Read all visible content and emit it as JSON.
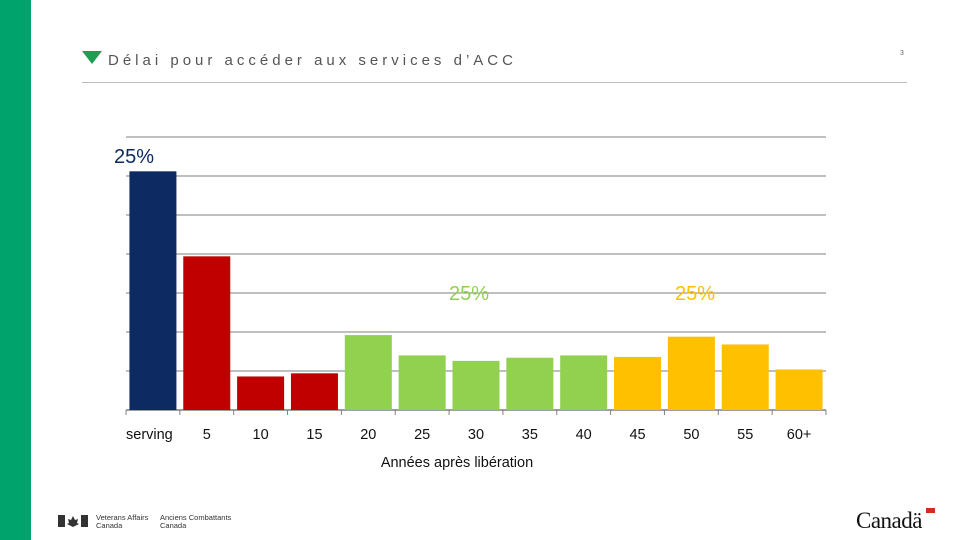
{
  "slide": {
    "title": "Délai pour accéder aux services d’ACC",
    "page_number": "3"
  },
  "colors": {
    "sidebar": "#00a36c",
    "title_triangle": "#1f9e53",
    "serving": "#0d2a63",
    "red": "#c00000",
    "green": "#92d050",
    "yellow": "#ffc000",
    "grid": "#7f7f7f"
  },
  "chart_data": {
    "type": "bar",
    "title": "Délai pour accéder aux services d’ACC",
    "xlabel": "Années après libération",
    "ylabel": "",
    "ylim": [
      0,
      35
    ],
    "grid": true,
    "categories": [
      "serving",
      "5",
      "10",
      "15",
      "20",
      "25",
      "30",
      "35",
      "40",
      "45",
      "50",
      "55",
      "60+"
    ],
    "values": [
      30.6,
      19.7,
      4.3,
      4.7,
      9.6,
      7.0,
      6.3,
      6.7,
      7.0,
      6.8,
      9.4,
      8.4,
      5.2
    ],
    "bar_colors": [
      "#0d2a63",
      "#c00000",
      "#c00000",
      "#c00000",
      "#92d050",
      "#92d050",
      "#92d050",
      "#92d050",
      "#92d050",
      "#ffc000",
      "#ffc000",
      "#ffc000",
      "#ffc000"
    ],
    "annotations": [
      {
        "text": "25%",
        "color": "#0d2a63",
        "anchor_category": "serving"
      },
      {
        "text": "25%",
        "color": "#92d050",
        "anchor_category": "30"
      },
      {
        "text": "25%",
        "color": "#ffc000",
        "anchor_category": "50"
      }
    ]
  },
  "footer": {
    "fip_english": "Veterans Affairs\nCanada",
    "fip_french": "Anciens Combattants\nCanada",
    "wordmark": "Canadä"
  }
}
